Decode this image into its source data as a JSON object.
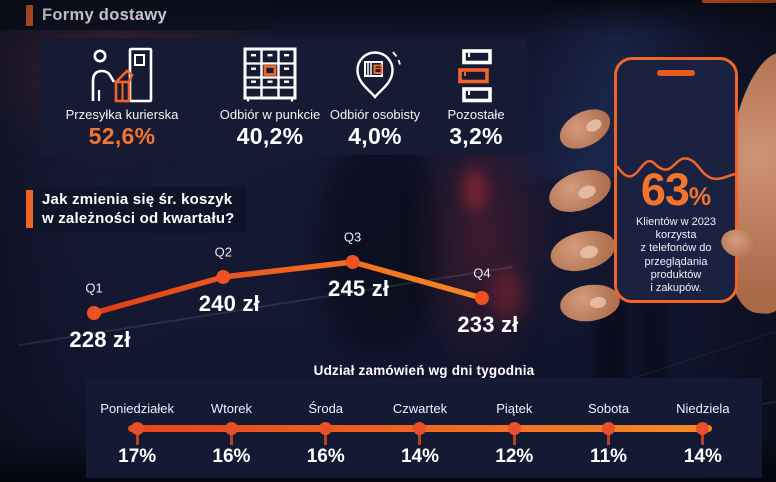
{
  "colors": {
    "accent": "#f0662a",
    "highlight_value": "#f2752d",
    "panel": "#161b33",
    "line_gradient_start": "#e8431c",
    "line_gradient_end": "#f58a25",
    "text": "#ffffff"
  },
  "header1": {
    "title": "Formy dostawy"
  },
  "delivery": {
    "items": [
      {
        "label": "Przesyłka kurierska",
        "value": "52,6%",
        "icon": "courier-delivery-icon",
        "highlight": true
      },
      {
        "label": "Odbiór w punkcie",
        "value": "40,2%",
        "icon": "parcel-locker-icon",
        "highlight": false
      },
      {
        "label": "Odbiór osobisty",
        "value": "4,0%",
        "icon": "pickup-pin-icon",
        "highlight": false
      },
      {
        "label": "Pozostałe",
        "value": "3,2%",
        "icon": "stacked-boxes-icon",
        "highlight": false
      }
    ]
  },
  "header2": {
    "line1": "Jak zmienia się śr. koszyk",
    "line2": "w zależności od kwartału?"
  },
  "phone": {
    "stat": "63",
    "percent_sign": "%",
    "lines": [
      "Klientów w 2023",
      "korzysta",
      "z telefonów do",
      "przeglądania",
      "produktów",
      "i zakupów."
    ]
  },
  "chart_data": [
    {
      "type": "line",
      "title": "Jak zmienia się śr. koszyk w zależności od kwartału?",
      "categories": [
        "Q1",
        "Q2",
        "Q3",
        "Q4"
      ],
      "values": [
        228,
        240,
        245,
        233
      ],
      "value_labels": [
        "228 zł",
        "240 zł",
        "245 zł",
        "233 zł"
      ],
      "unit": "zł",
      "ylim": [
        225,
        250
      ],
      "grid": false,
      "legend": "none",
      "line_color": "#f0571f"
    },
    {
      "type": "line",
      "title": "Udział zamówień wg dni tygodnia",
      "categories": [
        "Poniedziałek",
        "Wtorek",
        "Środa",
        "Czwartek",
        "Piątek",
        "Sobota",
        "Niedziela"
      ],
      "values": [
        17,
        16,
        16,
        14,
        12,
        11,
        14
      ],
      "value_labels": [
        "17%",
        "16%",
        "16%",
        "14%",
        "12%",
        "11%",
        "14%"
      ],
      "unit": "%",
      "grid": false,
      "legend": "none",
      "line_color": "#f0571f"
    }
  ]
}
